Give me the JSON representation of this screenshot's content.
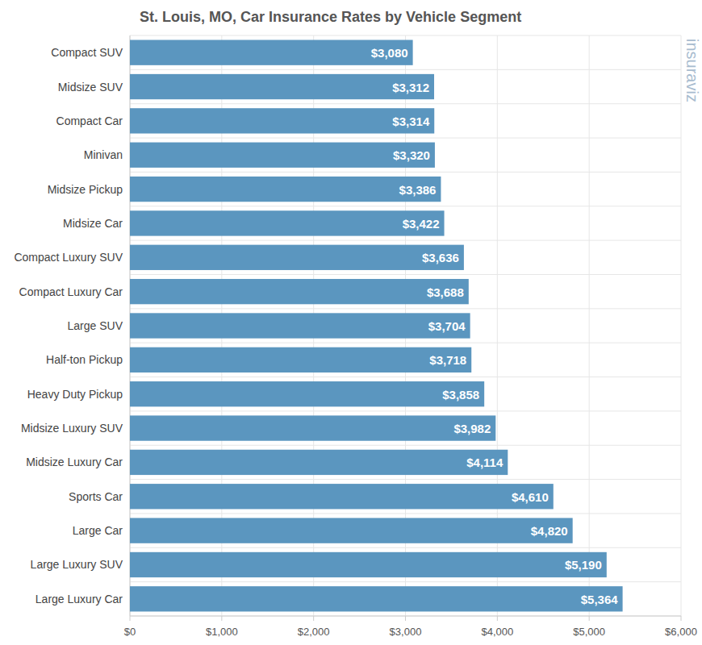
{
  "chart_data": {
    "type": "bar",
    "title": "St. Louis, MO, Car Insurance Rates by Vehicle Segment",
    "orientation": "horizontal",
    "categories": [
      "Compact SUV",
      "Midsize SUV",
      "Compact Car",
      "Minivan",
      "Midsize Pickup",
      "Midsize Car",
      "Compact Luxury SUV",
      "Compact Luxury Car",
      "Large SUV",
      "Half-ton Pickup",
      "Heavy Duty Pickup",
      "Midsize Luxury SUV",
      "Midsize Luxury Car",
      "Sports Car",
      "Large Car",
      "Large Luxury SUV",
      "Large Luxury Car"
    ],
    "values": [
      3080,
      3312,
      3314,
      3320,
      3386,
      3422,
      3636,
      3688,
      3704,
      3718,
      3858,
      3982,
      4114,
      4610,
      4820,
      5190,
      5364
    ],
    "value_labels": [
      "$3,080",
      "$3,312",
      "$3,314",
      "$3,320",
      "$3,386",
      "$3,422",
      "$3,636",
      "$3,688",
      "$3,704",
      "$3,718",
      "$3,858",
      "$3,982",
      "$4,114",
      "$4,610",
      "$4,820",
      "$5,190",
      "$5,364"
    ],
    "data_labels": true,
    "color": "#5b96bf",
    "xlim": [
      0,
      6000
    ],
    "xticks": [
      {
        "value": 0,
        "label": "$0"
      },
      {
        "value": 1000,
        "label": "$1,000"
      },
      {
        "value": 2000,
        "label": "$2,000"
      },
      {
        "value": 3000,
        "label": "$3,000"
      },
      {
        "value": 4000,
        "label": "$4,000"
      },
      {
        "value": 5000,
        "label": "$5,000"
      },
      {
        "value": 6000,
        "label": "$6,000"
      }
    ],
    "grid": true,
    "annotations": [
      "insuraviz"
    ]
  }
}
